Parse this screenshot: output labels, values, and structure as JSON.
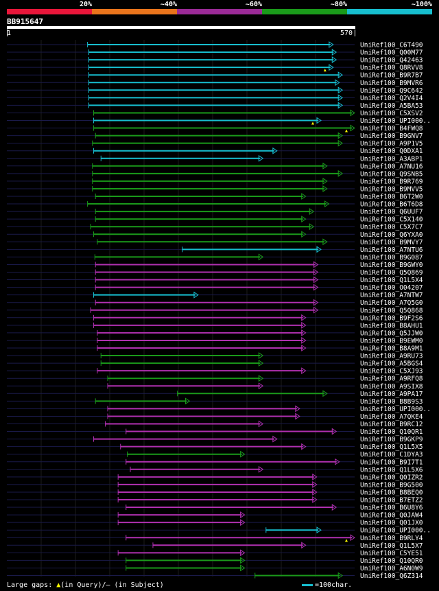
{
  "legend": {
    "labels": [
      "20%",
      "~40%",
      "~60%",
      "~80%",
      "~100%"
    ],
    "colors": [
      "#e8163a",
      "#e8741c",
      "#9a2a96",
      "#1a9a1a",
      "#17becf"
    ]
  },
  "query": {
    "id": "BB915647",
    "start": "1",
    "end": "570"
  },
  "footer": {
    "gaps_prefix": "Large gaps: ",
    "gaps_glyph": "▲",
    "gaps_text": "(in Query)/– (in Subject)",
    "scale_text": "=100char."
  },
  "chart_data": {
    "type": "alignment",
    "query_length": 570,
    "color_by_identity": {
      "cyan": "~100%",
      "green": "~80%",
      "purple": "~60%"
    },
    "hits": [
      {
        "name": "UniRef100_C6T490",
        "start": 133,
        "end": 535,
        "color": "cyan"
      },
      {
        "name": "UniRef100_Q00M77",
        "start": 135,
        "end": 540,
        "color": "cyan"
      },
      {
        "name": "UniRef100_Q42463",
        "start": 135,
        "end": 540,
        "color": "cyan"
      },
      {
        "name": "UniRef100_Q8RVV8",
        "start": 135,
        "end": 535,
        "color": "cyan",
        "gap": true
      },
      {
        "name": "UniRef100_B9R7B7",
        "start": 135,
        "end": 550,
        "color": "cyan"
      },
      {
        "name": "UniRef100_B9MVR6",
        "start": 135,
        "end": 545,
        "color": "cyan"
      },
      {
        "name": "UniRef100_Q9C642",
        "start": 135,
        "end": 550,
        "color": "cyan"
      },
      {
        "name": "UniRef100_Q2V4I4",
        "start": 135,
        "end": 550,
        "color": "cyan"
      },
      {
        "name": "UniRef100_A5BA53",
        "start": 135,
        "end": 550,
        "color": "cyan"
      },
      {
        "name": "UniRef100_C5XSV2",
        "start": 143,
        "end": 570,
        "color": "green"
      },
      {
        "name": "UniRef100_UPI000..",
        "start": 143,
        "end": 515,
        "color": "cyan",
        "gap": true
      },
      {
        "name": "UniRef100_B4FWQ8",
        "start": 143,
        "end": 570,
        "color": "green",
        "gap": true
      },
      {
        "name": "UniRef100_B9GNV7",
        "start": 146,
        "end": 550,
        "color": "green"
      },
      {
        "name": "UniRef100_A9P1V5",
        "start": 141,
        "end": 550,
        "color": "green"
      },
      {
        "name": "UniRef100_Q0DXA1",
        "start": 143,
        "end": 443,
        "color": "cyan"
      },
      {
        "name": "UniRef100_A3ABP1",
        "start": 155,
        "end": 420,
        "color": "cyan"
      },
      {
        "name": "UniRef100_A7NU16",
        "start": 141,
        "end": 525,
        "color": "green"
      },
      {
        "name": "UniRef100_Q9SNB5",
        "start": 141,
        "end": 550,
        "color": "green"
      },
      {
        "name": "UniRef100_B9R769",
        "start": 141,
        "end": 525,
        "color": "green"
      },
      {
        "name": "UniRef100_B9MVV5",
        "start": 141,
        "end": 525,
        "color": "green"
      },
      {
        "name": "UniRef100_B6T2W0",
        "start": 146,
        "end": 490,
        "color": "green"
      },
      {
        "name": "UniRef100_B6T6D8",
        "start": 133,
        "end": 528,
        "color": "green"
      },
      {
        "name": "UniRef100_Q6UUF7",
        "start": 146,
        "end": 503,
        "color": "green"
      },
      {
        "name": "UniRef100_C5X140",
        "start": 146,
        "end": 490,
        "color": "green"
      },
      {
        "name": "UniRef100_C5X7C7",
        "start": 138,
        "end": 503,
        "color": "green"
      },
      {
        "name": "UniRef100_Q6YXA0",
        "start": 143,
        "end": 490,
        "color": "green"
      },
      {
        "name": "UniRef100_B9MVY7",
        "start": 149,
        "end": 525,
        "color": "green"
      },
      {
        "name": "UniRef100_A7NTU6",
        "start": 288,
        "end": 515,
        "color": "cyan"
      },
      {
        "name": "UniRef100_B9G087",
        "start": 145,
        "end": 420,
        "color": "green"
      },
      {
        "name": "UniRef100_B9GWY0",
        "start": 146,
        "end": 510,
        "color": "purple"
      },
      {
        "name": "UniRef100_Q5Q869",
        "start": 146,
        "end": 510,
        "color": "purple"
      },
      {
        "name": "UniRef100_Q1L5X4",
        "start": 146,
        "end": 510,
        "color": "purple"
      },
      {
        "name": "UniRef100_O04207",
        "start": 146,
        "end": 510,
        "color": "purple"
      },
      {
        "name": "UniRef100_A7NTW7",
        "start": 143,
        "end": 314,
        "color": "cyan"
      },
      {
        "name": "UniRef100_A7Q5G0",
        "start": 146,
        "end": 510,
        "color": "purple"
      },
      {
        "name": "UniRef100_Q5Q868",
        "start": 138,
        "end": 510,
        "color": "purple"
      },
      {
        "name": "UniRef100_B9F2S6",
        "start": 143,
        "end": 490,
        "color": "purple"
      },
      {
        "name": "UniRef100_B8AHU1",
        "start": 143,
        "end": 490,
        "color": "purple"
      },
      {
        "name": "UniRef100_Q5JJW0",
        "start": 149,
        "end": 490,
        "color": "purple"
      },
      {
        "name": "UniRef100_B9EWM0",
        "start": 149,
        "end": 490,
        "color": "purple"
      },
      {
        "name": "UniRef100_B8A9M1",
        "start": 149,
        "end": 490,
        "color": "purple"
      },
      {
        "name": "UniRef100_A9RU73",
        "start": 155,
        "end": 420,
        "color": "green"
      },
      {
        "name": "UniRef100_A5BGS4",
        "start": 155,
        "end": 420,
        "color": "green"
      },
      {
        "name": "UniRef100_C5XJ93",
        "start": 149,
        "end": 490,
        "color": "purple"
      },
      {
        "name": "UniRef100_A9RFQ8",
        "start": 166,
        "end": 420,
        "color": "green"
      },
      {
        "name": "UniRef100_A9SIX8",
        "start": 166,
        "end": 420,
        "color": "purple"
      },
      {
        "name": "UniRef100_A9PA17",
        "start": 280,
        "end": 525,
        "color": "green"
      },
      {
        "name": "UniRef100_B8B9S3",
        "start": 146,
        "end": 300,
        "color": "green"
      },
      {
        "name": "UniRef100_UPI000..",
        "start": 166,
        "end": 480,
        "color": "purple"
      },
      {
        "name": "UniRef100_A7QKE4",
        "start": 166,
        "end": 480,
        "color": "purple"
      },
      {
        "name": "UniRef100_B9RC12",
        "start": 162,
        "end": 420,
        "color": "purple"
      },
      {
        "name": "UniRef100_Q10QR1",
        "start": 196,
        "end": 540,
        "color": "purple"
      },
      {
        "name": "UniRef100_B9GKP9",
        "start": 143,
        "end": 443,
        "color": "purple"
      },
      {
        "name": "UniRef100_Q1L5X5",
        "start": 187,
        "end": 490,
        "color": "purple"
      },
      {
        "name": "UniRef100_C1DYA3",
        "start": 198,
        "end": 390,
        "color": "green"
      },
      {
        "name": "UniRef100_B9I7T1",
        "start": 196,
        "end": 545,
        "color": "purple"
      },
      {
        "name": "UniRef100_Q1L5X6",
        "start": 203,
        "end": 420,
        "color": "purple"
      },
      {
        "name": "UniRef100_Q0IZR2",
        "start": 183,
        "end": 508,
        "color": "purple"
      },
      {
        "name": "UniRef100_B9G500",
        "start": 183,
        "end": 508,
        "color": "purple"
      },
      {
        "name": "UniRef100_B8BEQ0",
        "start": 183,
        "end": 508,
        "color": "purple"
      },
      {
        "name": "UniRef100_B7ETZ2",
        "start": 183,
        "end": 508,
        "color": "purple"
      },
      {
        "name": "UniRef100_B6U8Y6",
        "start": 196,
        "end": 540,
        "color": "purple"
      },
      {
        "name": "UniRef100_Q0JAW4",
        "start": 183,
        "end": 390,
        "color": "purple"
      },
      {
        "name": "UniRef100_Q01JX0",
        "start": 183,
        "end": 390,
        "color": "purple"
      },
      {
        "name": "UniRef100_UPI000..",
        "start": 425,
        "end": 515,
        "color": "cyan"
      },
      {
        "name": "UniRef100_B9RLY4",
        "start": 196,
        "end": 570,
        "color": "purple",
        "gap": true
      },
      {
        "name": "UniRef100_Q1L5X7",
        "start": 240,
        "end": 490,
        "color": "purple"
      },
      {
        "name": "UniRef100_C5YE51",
        "start": 183,
        "end": 390,
        "color": "purple"
      },
      {
        "name": "UniRef100_Q10QR0",
        "start": 196,
        "end": 390,
        "color": "green"
      },
      {
        "name": "UniRef100_A6N0W9",
        "start": 196,
        "end": 390,
        "color": "green"
      },
      {
        "name": "UniRef100_Q6Z314",
        "start": 407,
        "end": 550,
        "color": "green"
      }
    ]
  }
}
